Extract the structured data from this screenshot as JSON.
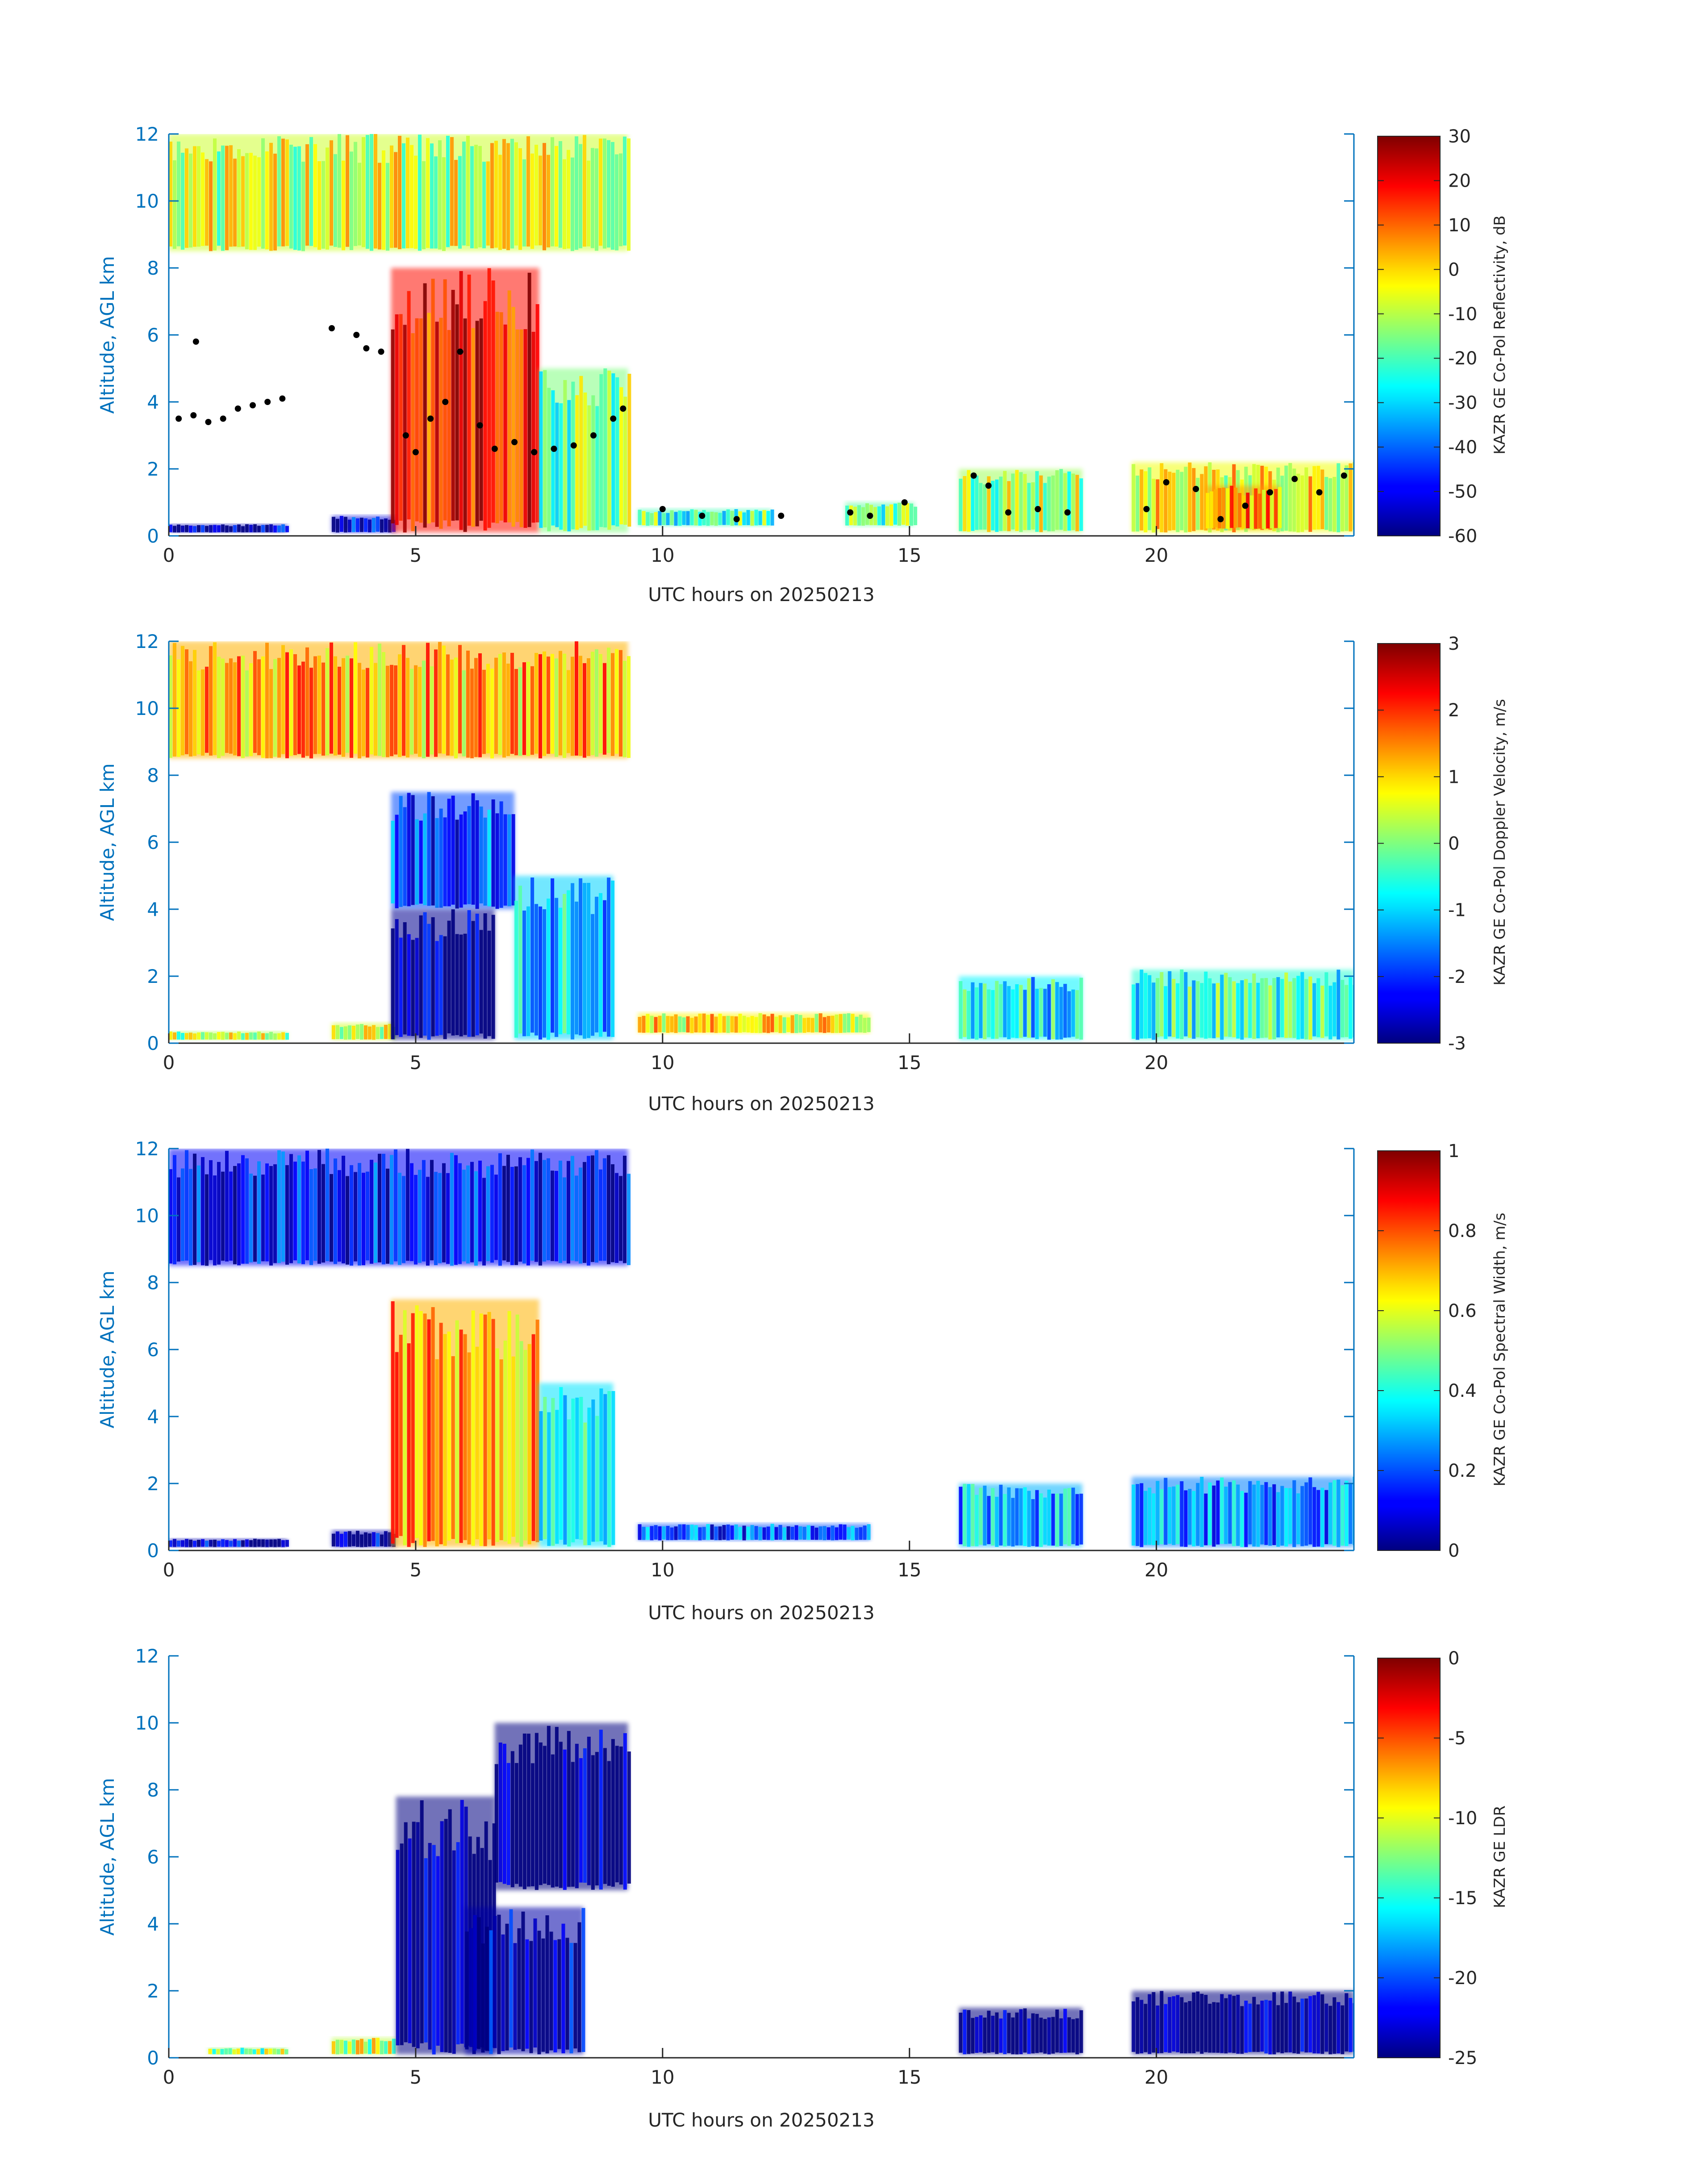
{
  "colors": {
    "axis_blue": "#0072bd",
    "text_dark": "#262626",
    "colormap": "jet",
    "overlay_points": "#000000"
  },
  "chart_data": [
    {
      "type": "heatmap",
      "title": "",
      "xlabel": "UTC hours on 20250213",
      "ylabel": "Altitude, AGL km",
      "xlim": [
        0,
        24
      ],
      "ylim": [
        0,
        12
      ],
      "xticks": [
        0,
        5,
        10,
        15,
        20
      ],
      "yticks": [
        0,
        2,
        4,
        6,
        8,
        10,
        12
      ],
      "colorbar_label": "KAZR GE Co-Pol Reflectivity, dB",
      "clim": [
        -60,
        30
      ],
      "colorbar_ticks": [
        30,
        20,
        10,
        0,
        -10,
        -20,
        -30,
        -40,
        -50,
        -60
      ],
      "overlay": "black points (cloud base)",
      "echo_regions": [
        {
          "x": [
            0,
            2.4
          ],
          "y": [
            0.1,
            0.35
          ],
          "value": -55
        },
        {
          "x": [
            3.3,
            4.6
          ],
          "y": [
            0.1,
            0.6
          ],
          "value": -52
        },
        {
          "x": [
            0,
            9.3
          ],
          "y": [
            8.5,
            12
          ],
          "value": -8
        },
        {
          "x": [
            4.5,
            7.5
          ],
          "y": [
            0.1,
            8.0
          ],
          "value": 18
        },
        {
          "x": [
            7.5,
            9.3
          ],
          "y": [
            0.1,
            5.0
          ],
          "value": -15
        },
        {
          "x": [
            9.5,
            12.2
          ],
          "y": [
            0.3,
            0.8
          ],
          "value": -20
        },
        {
          "x": [
            13.7,
            15.1
          ],
          "y": [
            0.3,
            1.0
          ],
          "value": -18
        },
        {
          "x": [
            16.0,
            18.5
          ],
          "y": [
            0.1,
            2.0
          ],
          "value": -12
        },
        {
          "x": [
            19.5,
            24.0
          ],
          "y": [
            0.1,
            2.2
          ],
          "value": -5
        },
        {
          "x": [
            21.0,
            22.5
          ],
          "y": [
            0.2,
            1.5
          ],
          "value": 5
        }
      ],
      "cloud_base_points": [
        [
          0.2,
          3.5
        ],
        [
          0.5,
          3.6
        ],
        [
          0.8,
          3.4
        ],
        [
          1.1,
          3.5
        ],
        [
          1.4,
          3.8
        ],
        [
          1.7,
          3.9
        ],
        [
          2.0,
          4.0
        ],
        [
          2.3,
          4.1
        ],
        [
          0.55,
          5.8
        ],
        [
          3.3,
          6.2
        ],
        [
          3.8,
          6.0
        ],
        [
          4.0,
          5.6
        ],
        [
          4.3,
          5.5
        ],
        [
          4.8,
          3.0
        ],
        [
          5.0,
          2.5
        ],
        [
          5.3,
          3.5
        ],
        [
          5.6,
          4.0
        ],
        [
          5.9,
          5.5
        ],
        [
          6.3,
          3.3
        ],
        [
          6.6,
          2.6
        ],
        [
          7.0,
          2.8
        ],
        [
          7.4,
          2.5
        ],
        [
          7.8,
          2.6
        ],
        [
          8.2,
          2.7
        ],
        [
          8.6,
          3.0
        ],
        [
          9.0,
          3.5
        ],
        [
          9.2,
          3.8
        ],
        [
          10.0,
          0.8
        ],
        [
          10.8,
          0.6
        ],
        [
          11.5,
          0.5
        ],
        [
          12.4,
          0.6
        ],
        [
          13.8,
          0.7
        ],
        [
          14.2,
          0.6
        ],
        [
          14.9,
          1.0
        ],
        [
          16.3,
          1.8
        ],
        [
          16.6,
          1.5
        ],
        [
          17.0,
          0.7
        ],
        [
          17.6,
          0.8
        ],
        [
          18.2,
          0.7
        ],
        [
          19.8,
          0.8
        ],
        [
          20.2,
          1.6
        ],
        [
          20.8,
          1.4
        ],
        [
          21.3,
          0.5
        ],
        [
          21.8,
          0.9
        ],
        [
          22.3,
          1.3
        ],
        [
          22.8,
          1.7
        ],
        [
          23.3,
          1.3
        ],
        [
          23.8,
          1.8
        ]
      ]
    },
    {
      "type": "heatmap",
      "title": "",
      "xlabel": "UTC hours on 20250213",
      "ylabel": "Altitude, AGL km",
      "xlim": [
        0,
        24
      ],
      "ylim": [
        0,
        12
      ],
      "xticks": [
        0,
        5,
        10,
        15,
        20
      ],
      "yticks": [
        0,
        2,
        4,
        6,
        8,
        10,
        12
      ],
      "colorbar_label": "KAZR GE Co-Pol Doppler Velocity, m/s",
      "clim": [
        -3,
        3
      ],
      "colorbar_ticks": [
        3,
        2,
        1,
        0,
        -1,
        -2,
        -3
      ],
      "echo_regions": [
        {
          "x": [
            0,
            2.4
          ],
          "y": [
            0.1,
            0.35
          ],
          "value": 0.3
        },
        {
          "x": [
            3.3,
            4.6
          ],
          "y": [
            0.1,
            0.6
          ],
          "value": 0.5
        },
        {
          "x": [
            0,
            9.3
          ],
          "y": [
            8.5,
            12
          ],
          "value": 1.2
        },
        {
          "x": [
            4.5,
            7.0
          ],
          "y": [
            4.0,
            7.5
          ],
          "value": -1.8
        },
        {
          "x": [
            4.5,
            6.6
          ],
          "y": [
            0.1,
            4.0
          ],
          "value": -2.9
        },
        {
          "x": [
            7.0,
            9.0
          ],
          "y": [
            0.1,
            5.0
          ],
          "value": -1.0
        },
        {
          "x": [
            9.5,
            14.2
          ],
          "y": [
            0.3,
            0.9
          ],
          "value": 0.8
        },
        {
          "x": [
            16.0,
            18.5
          ],
          "y": [
            0.1,
            2.0
          ],
          "value": -0.8
        },
        {
          "x": [
            19.5,
            24.0
          ],
          "y": [
            0.1,
            2.2
          ],
          "value": -0.5
        }
      ]
    },
    {
      "type": "heatmap",
      "title": "",
      "xlabel": "UTC hours on 20250213",
      "ylabel": "Altitude, AGL km",
      "xlim": [
        0,
        24
      ],
      "ylim": [
        0,
        12
      ],
      "xticks": [
        0,
        5,
        10,
        15,
        20
      ],
      "yticks": [
        0,
        2,
        4,
        6,
        8,
        10,
        12
      ],
      "colorbar_label": "KAZR GE Co-Pol Spectral Width, m/s",
      "clim": [
        0,
        1
      ],
      "colorbar_ticks": [
        1,
        0.8,
        0.6,
        0.4,
        0.2,
        0
      ],
      "echo_regions": [
        {
          "x": [
            0,
            2.4
          ],
          "y": [
            0.1,
            0.35
          ],
          "value": 0.05
        },
        {
          "x": [
            3.3,
            4.6
          ],
          "y": [
            0.1,
            0.6
          ],
          "value": 0.05
        },
        {
          "x": [
            0,
            9.3
          ],
          "y": [
            8.5,
            12
          ],
          "value": 0.12
        },
        {
          "x": [
            4.5,
            7.5
          ],
          "y": [
            0.1,
            7.5
          ],
          "value": 0.7
        },
        {
          "x": [
            7.5,
            9.0
          ],
          "y": [
            0.1,
            5.0
          ],
          "value": 0.35
        },
        {
          "x": [
            9.5,
            14.2
          ],
          "y": [
            0.3,
            0.8
          ],
          "value": 0.2
        },
        {
          "x": [
            16.0,
            18.5
          ],
          "y": [
            0.1,
            2.0
          ],
          "value": 0.3
        },
        {
          "x": [
            19.5,
            24.0
          ],
          "y": [
            0.1,
            2.2
          ],
          "value": 0.25
        }
      ]
    },
    {
      "type": "heatmap",
      "title": "",
      "xlabel": "UTC hours on 20250213",
      "ylabel": "Altitude, AGL km",
      "xlim": [
        0,
        24
      ],
      "ylim": [
        0,
        12
      ],
      "xticks": [
        0,
        5,
        10,
        15,
        20
      ],
      "yticks": [
        0,
        2,
        4,
        6,
        8,
        10,
        12
      ],
      "colorbar_label": "KAZR GE LDR",
      "clim": [
        -25,
        0
      ],
      "colorbar_ticks": [
        0,
        -5,
        -10,
        -15,
        -20,
        -25
      ],
      "echo_regions": [
        {
          "x": [
            0.8,
            2.4
          ],
          "y": [
            0.1,
            0.3
          ],
          "value": -12
        },
        {
          "x": [
            3.3,
            4.6
          ],
          "y": [
            0.1,
            0.6
          ],
          "value": -11
        },
        {
          "x": [
            4.6,
            6.6
          ],
          "y": [
            0.1,
            7.8
          ],
          "value": -25
        },
        {
          "x": [
            6.6,
            9.3
          ],
          "y": [
            5.0,
            10.0
          ],
          "value": -25
        },
        {
          "x": [
            6.0,
            8.4
          ],
          "y": [
            0.1,
            4.5
          ],
          "value": -24
        },
        {
          "x": [
            16.0,
            18.5
          ],
          "y": [
            0.1,
            1.5
          ],
          "value": -25
        },
        {
          "x": [
            19.5,
            24.0
          ],
          "y": [
            0.1,
            2.0
          ],
          "value": -25
        }
      ]
    }
  ]
}
